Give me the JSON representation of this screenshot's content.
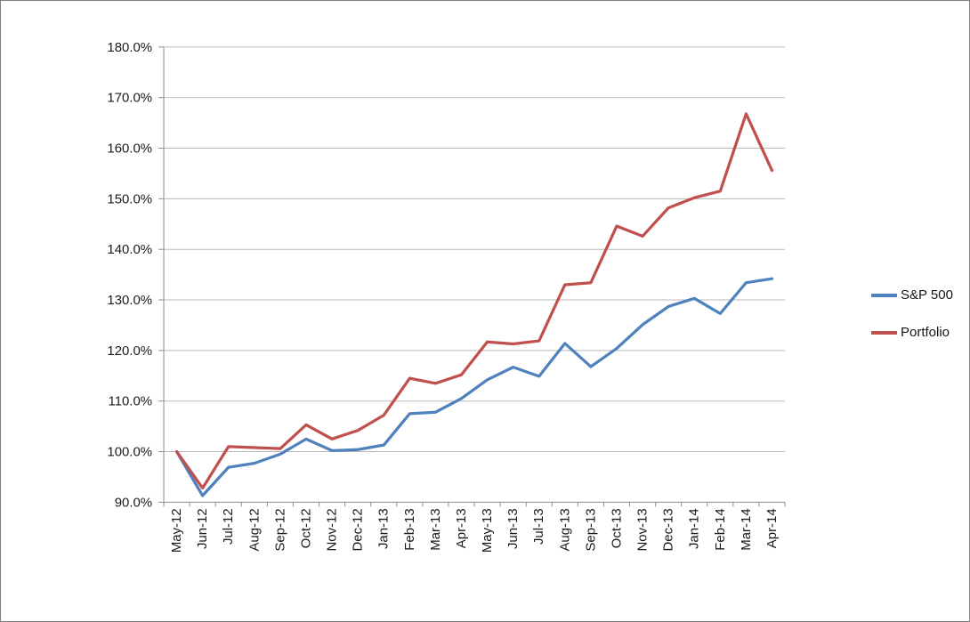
{
  "window": {
    "background": "#ffffff",
    "border_color": "#808080"
  },
  "legend": {
    "position": "right"
  },
  "chart_data": {
    "type": "line",
    "title": "",
    "xlabel": "",
    "ylabel": "",
    "categories": [
      "May-12",
      "Jun-12",
      "Jul-12",
      "Aug-12",
      "Sep-12",
      "Oct-12",
      "Nov-12",
      "Dec-12",
      "Jan-13",
      "Feb-13",
      "Mar-13",
      "Apr-13",
      "May-13",
      "Jun-13",
      "Jul-13",
      "Aug-13",
      "Sep-13",
      "Oct-13",
      "Nov-13",
      "Dec-13",
      "Jan-14",
      "Feb-14",
      "Mar-14",
      "Apr-14"
    ],
    "series": [
      {
        "name": "S&P 500",
        "color": "#4F81BD",
        "values": [
          100.0,
          91.3,
          96.9,
          97.7,
          99.5,
          102.5,
          100.2,
          100.4,
          101.3,
          107.5,
          107.8,
          110.5,
          114.2,
          116.7,
          114.9,
          121.4,
          116.8,
          120.4,
          125.1,
          128.7,
          130.3,
          127.3,
          133.4,
          134.2
        ]
      },
      {
        "name": "Portfolio",
        "color": "#C0504D",
        "values": [
          100.0,
          92.8,
          101.0,
          100.8,
          100.6,
          105.3,
          102.5,
          104.2,
          107.2,
          114.5,
          113.5,
          115.2,
          121.7,
          121.3,
          121.9,
          133.0,
          133.4,
          144.6,
          142.6,
          148.2,
          150.2,
          151.5,
          166.8,
          155.6
        ]
      }
    ],
    "y_axis": {
      "min": 90,
      "max": 180,
      "step": 10,
      "tick_labels": [
        "90.0%",
        "100.0%",
        "110.0%",
        "120.0%",
        "130.0%",
        "140.0%",
        "150.0%",
        "160.0%",
        "170.0%",
        "180.0%"
      ]
    },
    "grid": true,
    "legend_position": "right",
    "gridline_color": "#b8b8b8",
    "axis_color": "#8e8e8e",
    "text_color": "#1a1a1a"
  }
}
